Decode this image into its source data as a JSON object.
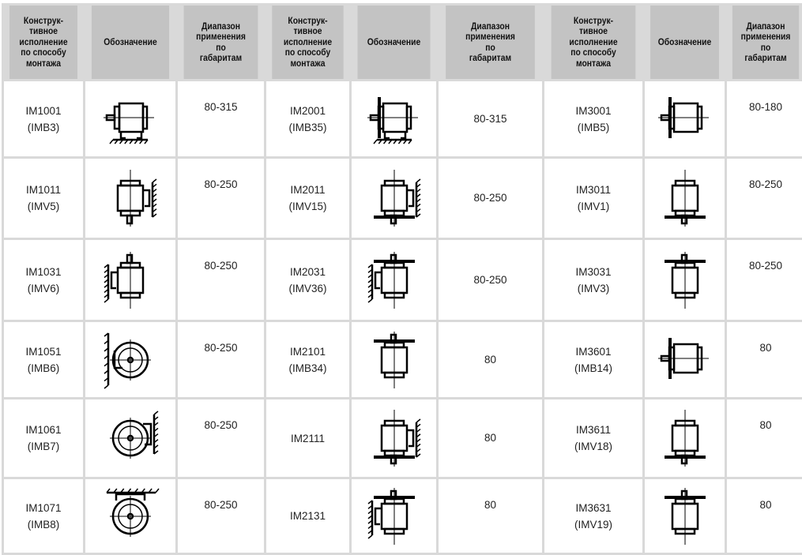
{
  "header": {
    "col_type": [
      "Конструк-",
      "тивное",
      "исполнение",
      "по способу",
      "монтажа"
    ],
    "col_symbol": "Обозначение",
    "col_range": [
      "Диапазон",
      "применения",
      "по",
      "габаритам"
    ]
  },
  "rows": [
    [
      {
        "code": "IM1001",
        "alt": "(IMB3)",
        "icon": "foot-mounted-horizontal-motor-icon",
        "range": "80-315"
      },
      {
        "code": "IM2001",
        "alt": "(IMB35)",
        "icon": "foot-flange-horizontal-motor-icon",
        "range": "80-315"
      },
      {
        "code": "IM3001",
        "alt": "(IMB5)",
        "icon": "flange-horizontal-motor-icon",
        "range": "80-180"
      }
    ],
    [
      {
        "code": "IM1011",
        "alt": "(IMV5)",
        "icon": "wall-mounted-shaft-down-motor-icon",
        "range": "80-250"
      },
      {
        "code": "IM2011",
        "alt": "(IMV15)",
        "icon": "wall-flange-shaft-down-motor-icon",
        "range": "80-250"
      },
      {
        "code": "IM3011",
        "alt": "(IMV1)",
        "icon": "flange-shaft-down-motor-icon",
        "range": "80-250"
      }
    ],
    [
      {
        "code": "IM1031",
        "alt": "(IMV6)",
        "icon": "wall-mounted-shaft-up-motor-icon",
        "range": "80-250"
      },
      {
        "code": "IM2031",
        "alt": "(IMV36)",
        "icon": "wall-flange-shaft-up-motor-icon",
        "range": "80-250"
      },
      {
        "code": "IM3031",
        "alt": "(IMV3)",
        "icon": "flange-shaft-up-motor-icon",
        "range": "80-250"
      }
    ],
    [
      {
        "code": "IM1051",
        "alt": "(IMB6)",
        "icon": "wall-mounted-end-view-motor-icon",
        "range": "80-250"
      },
      {
        "code": "IM2101",
        "alt": "(IMB34)",
        "icon": "foot-face-flange-motor-icon",
        "range": "80"
      },
      {
        "code": "IM3601",
        "alt": "(IMB14)",
        "icon": "face-flange-horizontal-motor-icon",
        "range": "80"
      }
    ],
    [
      {
        "code": "IM1061",
        "alt": "(IMB7)",
        "icon": "wall-mounted-end-view-right-motor-icon",
        "range": "80-250"
      },
      {
        "code": "IM2111",
        "alt": "",
        "icon": "wall-face-flange-shaft-down-motor-icon",
        "range": "80"
      },
      {
        "code": "IM3611",
        "alt": "(IMV18)",
        "icon": "face-flange-shaft-down-motor-icon",
        "range": "80"
      }
    ],
    [
      {
        "code": "IM1071",
        "alt": "(IMB8)",
        "icon": "ceiling-mounted-end-view-motor-icon",
        "range": "80-250"
      },
      {
        "code": "IM2131",
        "alt": "",
        "icon": "wall-face-flange-shaft-up-motor-icon",
        "range": "80"
      },
      {
        "code": "IM3631",
        "alt": "(IMV19)",
        "icon": "face-flange-shaft-up-motor-icon",
        "range": "80"
      }
    ]
  ]
}
